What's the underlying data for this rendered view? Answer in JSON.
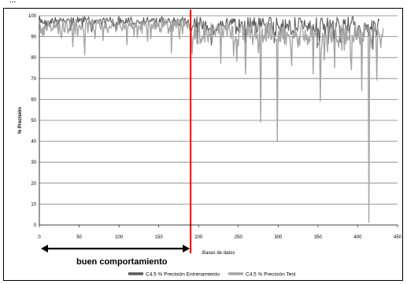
{
  "caption": "...",
  "chart_data": {
    "type": "line",
    "xlabel": "Bases de datos",
    "ylabel": "% Precisión",
    "xlim": [
      0,
      450
    ],
    "ylim": [
      0,
      100
    ],
    "x_ticks": [
      "0",
      "50",
      "100",
      "150",
      "200",
      "250",
      "300",
      "350",
      "400",
      "450"
    ],
    "y_ticks": [
      "0",
      "10",
      "20",
      "30",
      "40",
      "50",
      "60",
      "70",
      "80",
      "90",
      "100"
    ],
    "grid": "horizontal",
    "legend_position": "bottom",
    "series": [
      {
        "name": "C4.5 % Precisión Entrenamiento",
        "color": "#595959",
        "x_max": 427
      },
      {
        "name": "C4.5 % Precisión Test",
        "color": "#a6a6a6",
        "x_max": 432
      }
    ],
    "notable_test_dips": [
      {
        "x": 5,
        "y": 95
      },
      {
        "x": 42,
        "y": 85
      },
      {
        "x": 57,
        "y": 81
      },
      {
        "x": 80,
        "y": 88
      },
      {
        "x": 110,
        "y": 86
      },
      {
        "x": 166,
        "y": 82
      },
      {
        "x": 228,
        "y": 77
      },
      {
        "x": 248,
        "y": 78
      },
      {
        "x": 259,
        "y": 72
      },
      {
        "x": 278,
        "y": 49
      },
      {
        "x": 299,
        "y": 40
      },
      {
        "x": 317,
        "y": 76
      },
      {
        "x": 344,
        "y": 72
      },
      {
        "x": 353,
        "y": 59
      },
      {
        "x": 371,
        "y": 75
      },
      {
        "x": 392,
        "y": 74
      },
      {
        "x": 405,
        "y": 64
      },
      {
        "x": 414,
        "y": 1
      },
      {
        "x": 424,
        "y": 69
      }
    ],
    "threshold_line": {
      "x": 190,
      "color": "#ff0000"
    },
    "annotation": {
      "text": "buen comportamiento",
      "from_x": 0,
      "to_x": 190
    }
  }
}
